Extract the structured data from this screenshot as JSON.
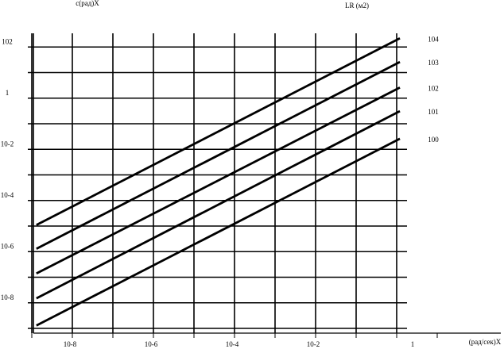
{
  "chart_data": {
    "type": "line",
    "title": "LR (м2)",
    "y_label": "c(рад)X",
    "x_label": "(рад/сек)X",
    "log_x": true,
    "log_y": true,
    "grid": true,
    "color": "#000000",
    "xlim": [
      1e-09,
      10
    ],
    "ylim": [
      1e-09,
      1000
    ],
    "xticks": [
      {
        "value": 1e-08,
        "label": "10-8"
      },
      {
        "value": 1e-06,
        "label": "10-6"
      },
      {
        "value": 0.0001,
        "label": "10-4"
      },
      {
        "value": 0.01,
        "label": "10-2"
      },
      1
    ],
    "yticks": [
      {
        "value": 100,
        "label": "102"
      },
      1,
      {
        "value": 0.01,
        "label": "10-2"
      },
      {
        "value": 0.0001,
        "label": "10-4"
      },
      {
        "value": 1e-06,
        "label": "10-6"
      },
      {
        "value": 1e-08,
        "label": "10-8"
      }
    ],
    "x_minor_ticks": [
      1e-09,
      1e-07,
      1e-05,
      0.001,
      0.1,
      10
    ],
    "y_minor_ticks": [
      1e-09,
      1e-07,
      1e-05,
      0.001,
      0.1,
      10
    ],
    "series": [
      {
        "name": "104",
        "x": [
          1.3e-09,
          1.2
        ],
        "values": [
          1.1e-05,
          220
        ]
      },
      {
        "name": "103",
        "x": [
          1.3e-09,
          1.2
        ],
        "values": [
          1.3e-06,
          26
        ]
      },
      {
        "name": "102",
        "x": [
          1.3e-09,
          1.2
        ],
        "values": [
          1.4e-07,
          2.6
        ]
      },
      {
        "name": "101",
        "x": [
          1.3e-09,
          1.2
        ],
        "values": [
          1.5e-08,
          0.31
        ]
      },
      {
        "name": "100",
        "x": [
          1.3e-09,
          1.2
        ],
        "values": [
          1.3e-09,
          0.026
        ]
      }
    ]
  }
}
